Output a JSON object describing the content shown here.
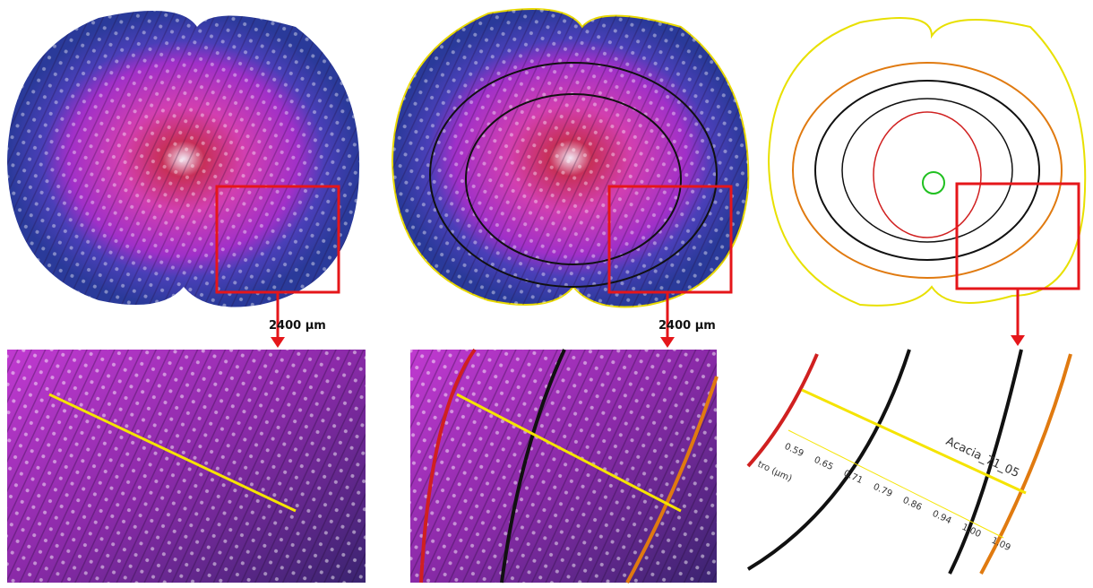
{
  "panels": [
    {
      "scale_bar": "2400 µm"
    },
    {
      "scale_bar": "2400 µm"
    },
    {
      "sample_label": "Acacia_71_05",
      "axis_label": "tro (µm)",
      "scale_labels": [
        "0.59",
        "0.65",
        "0.71",
        "0.79",
        "0.86",
        "0.94",
        "1.00",
        "1.09"
      ]
    }
  ]
}
